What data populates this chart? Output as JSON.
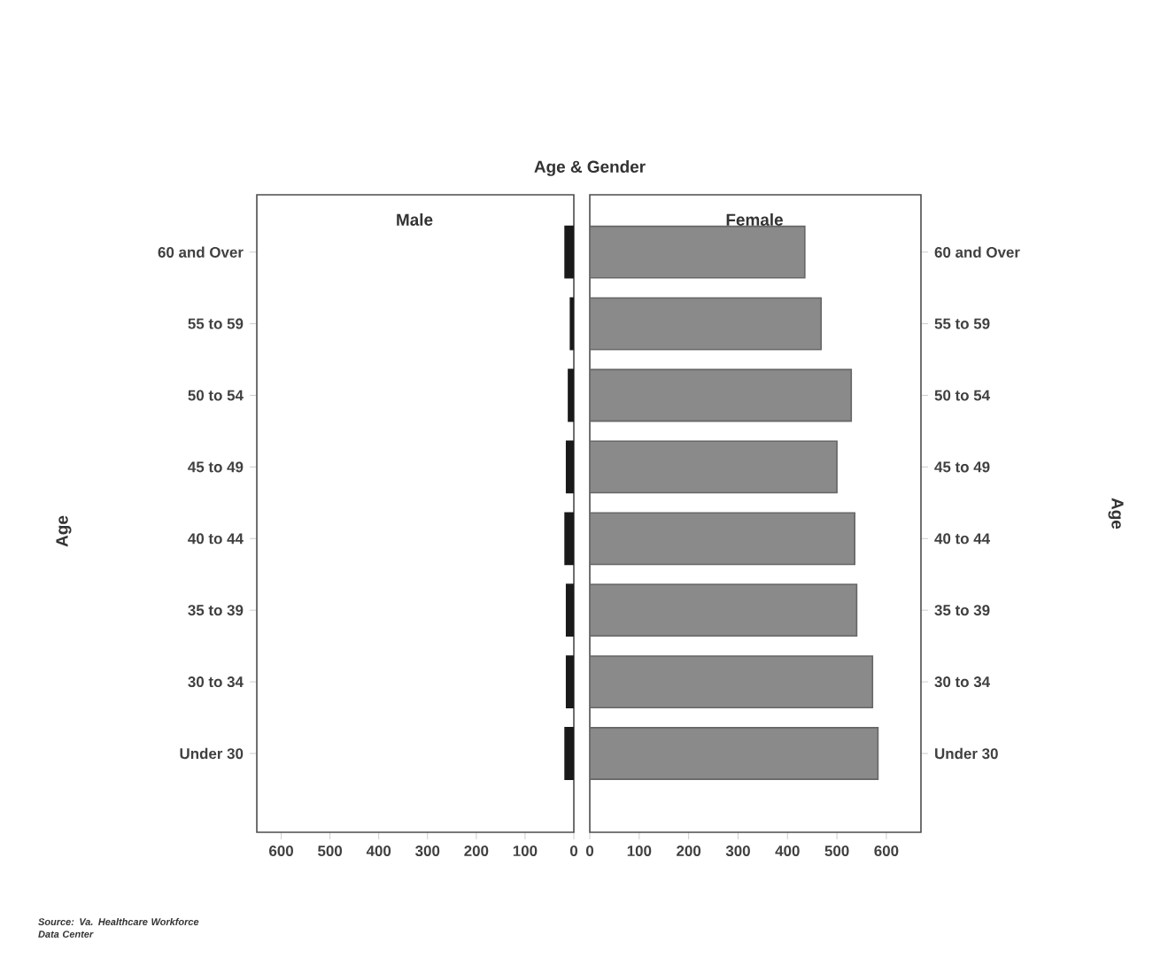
{
  "chart_data": [
    {
      "type": "bar",
      "orientation": "horizontal",
      "title": "Age & Gender",
      "subtitle": "Male",
      "ylabel": "Age",
      "categories": [
        "60 and Over",
        "55 to 59",
        "50 to 54",
        "45 to 49",
        "40 to 44",
        "35 to 39",
        "30 to 34",
        "Under 30"
      ],
      "values": [
        18,
        7,
        11,
        15,
        18,
        15,
        15,
        18
      ],
      "color": "#1a1a1a",
      "xlim": [
        650,
        0
      ],
      "xticks": [
        600,
        500,
        400,
        300,
        200,
        100,
        0
      ],
      "annotations": [
        "Source: Va. Healthcare Workforce Data Center"
      ]
    },
    {
      "type": "bar",
      "orientation": "horizontal",
      "subtitle": "Female",
      "ylabel": "Age",
      "categories": [
        "60 and Over",
        "55 to 59",
        "50 to 54",
        "45 to 49",
        "40 to 44",
        "35 to 39",
        "30 to 34",
        "Under 30"
      ],
      "values": [
        435,
        468,
        529,
        500,
        536,
        540,
        572,
        583
      ],
      "color": "#8a8a8a",
      "xlim": [
        0,
        670
      ],
      "xticks": [
        0,
        100,
        200,
        300,
        400,
        500,
        600
      ]
    }
  ]
}
